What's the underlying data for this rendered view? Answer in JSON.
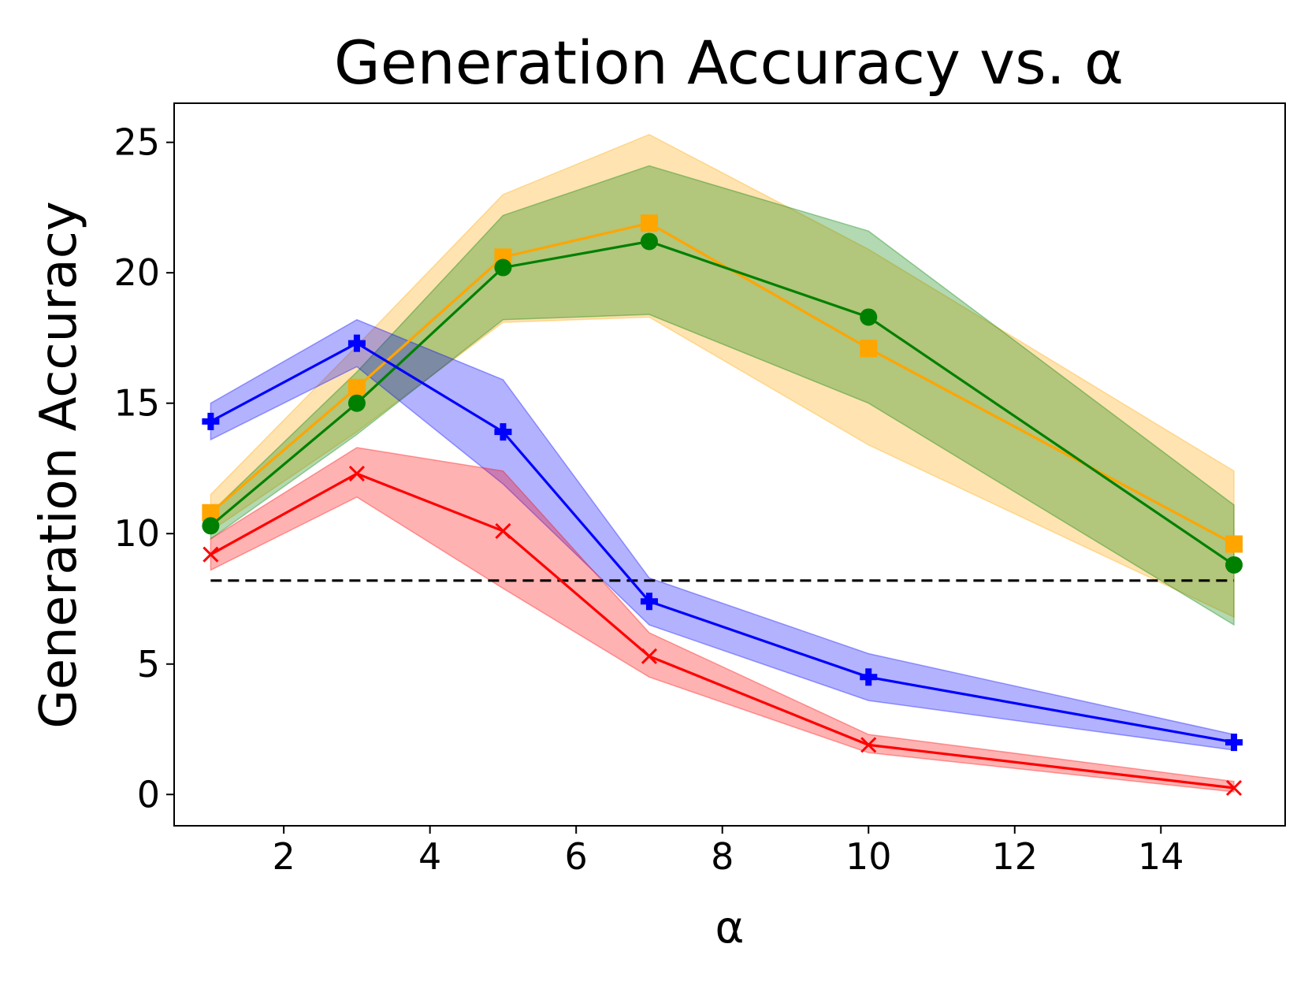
{
  "chart_data": {
    "type": "line",
    "title": "Generation Accuracy vs. α",
    "xlabel": "α",
    "ylabel": "Generation Accuracy",
    "xlim": [
      0.5,
      15.7
    ],
    "ylim": [
      -1.2,
      26.5
    ],
    "x_ticks": [
      2,
      4,
      6,
      8,
      10,
      12,
      14
    ],
    "y_ticks": [
      0,
      5,
      10,
      15,
      20,
      25
    ],
    "grid": false,
    "x": [
      1,
      3,
      5,
      7,
      10,
      15
    ],
    "baseline": {
      "value": 8.2,
      "color": "#000000",
      "style": "dashed"
    },
    "series": [
      {
        "color": "#ffa500",
        "marker": "square",
        "values": [
          10.8,
          15.6,
          20.6,
          21.9,
          17.1,
          9.6
        ],
        "lower": [
          10.1,
          13.9,
          18.1,
          18.3,
          13.4,
          6.8
        ],
        "upper": [
          11.5,
          17.2,
          23.0,
          25.3,
          20.9,
          12.4
        ]
      },
      {
        "color": "#008000",
        "marker": "circle",
        "values": [
          10.3,
          15.0,
          20.2,
          21.2,
          18.3,
          8.8
        ],
        "lower": [
          9.8,
          13.8,
          18.2,
          18.4,
          15.0,
          6.5
        ],
        "upper": [
          10.8,
          16.2,
          22.2,
          24.1,
          21.6,
          11.1
        ]
      },
      {
        "color": "#0000ff",
        "marker": "plus",
        "values": [
          14.3,
          17.3,
          13.9,
          7.4,
          4.5,
          2.0
        ],
        "lower": [
          13.6,
          16.4,
          11.9,
          6.5,
          3.6,
          1.7
        ],
        "upper": [
          15.0,
          18.2,
          15.9,
          8.3,
          5.4,
          2.3
        ]
      },
      {
        "color": "#ff0000",
        "marker": "x",
        "values": [
          9.2,
          12.3,
          10.1,
          5.3,
          1.9,
          0.25
        ],
        "lower": [
          8.6,
          11.4,
          7.9,
          4.5,
          1.6,
          0.1
        ],
        "upper": [
          9.8,
          13.3,
          12.4,
          6.2,
          2.3,
          0.5
        ]
      }
    ]
  }
}
